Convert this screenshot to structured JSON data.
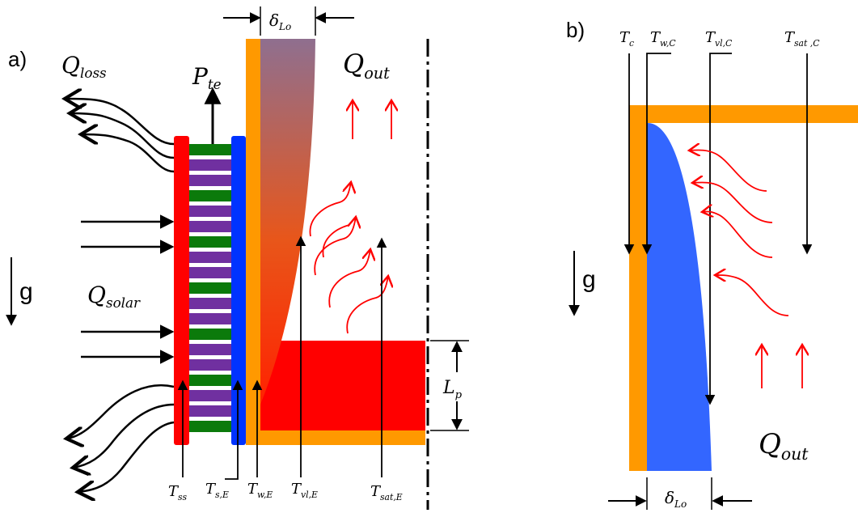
{
  "panels": {
    "a": {
      "label": "a)",
      "gravity": "g",
      "q_loss": {
        "main": "Q",
        "sub": "loss"
      },
      "p_te": {
        "main": "P",
        "sub": "te"
      },
      "q_out": {
        "main": "Q",
        "sub": "out"
      },
      "q_solar": {
        "main": "Q",
        "sub": "solar"
      },
      "delta_lo": {
        "main": "δ",
        "sub": "Lo"
      },
      "l_p": {
        "main": "L",
        "sub": "p"
      },
      "t_ss": {
        "main": "T",
        "sub": "ss"
      },
      "t_se": {
        "main": "T",
        "sub": "s,E"
      },
      "t_we": {
        "main": "T",
        "sub": "w,E"
      },
      "t_vle": {
        "main": "T",
        "sub": "vl,E"
      },
      "t_sate": {
        "main": "T",
        "sub": "sat,E"
      }
    },
    "b": {
      "label": "b)",
      "gravity": "g",
      "t_c": {
        "main": "T",
        "sub": "c"
      },
      "t_wc": {
        "main": "T",
        "sub": "w,C"
      },
      "t_vlc": {
        "main": "T",
        "sub": "vl,C"
      },
      "t_satc": {
        "main": "T",
        "sub": "sat ,C"
      },
      "q_out": {
        "main": "Q",
        "sub": "out"
      },
      "delta_lo": {
        "main": "δ",
        "sub": "Lo"
      }
    }
  },
  "colors": {
    "wall": "#FF9900",
    "red": "#FF0000",
    "blue": "#0033FF",
    "film_blue": "#3366FF",
    "green": "#0B7A0B",
    "purple": "#7030A0",
    "flow_arrow": "#FF0000",
    "grad_top": "#8F6F8F",
    "grad_bottom": "#FF3300"
  }
}
